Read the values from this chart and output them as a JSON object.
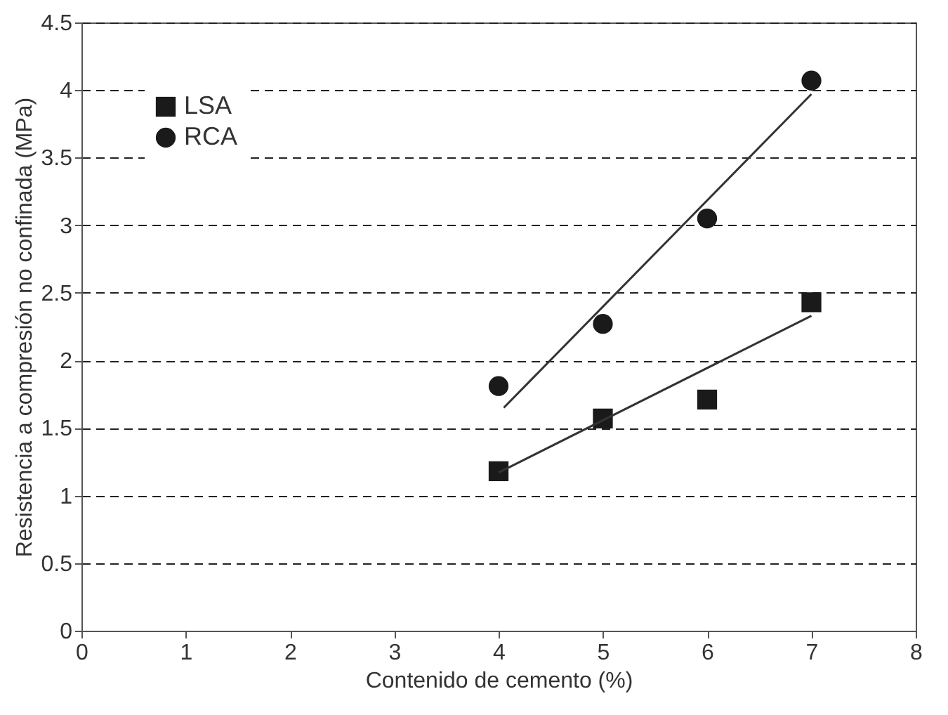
{
  "chart_data": {
    "type": "scatter",
    "xlabel": "Contenido de cemento (%)",
    "ylabel": "Resistencia a compresión no confinada (MPa)",
    "x": [
      4,
      5,
      6,
      7
    ],
    "series": [
      {
        "name": "LSA",
        "color": "#1a1a1a",
        "marker": "square",
        "values": [
          1.18,
          1.57,
          1.71,
          2.43
        ]
      },
      {
        "name": "RCA",
        "color": "#1a1a1a",
        "marker": "circle",
        "values": [
          1.81,
          2.27,
          3.05,
          4.07
        ]
      },
      {
        "type": "line",
        "color": "#333333",
        "x": [
          4,
          7
        ],
        "values": [
          1.17,
          2.33
        ]
      },
      {
        "type": "line",
        "color": "#333333",
        "x": [
          4.05,
          7
        ],
        "values": [
          1.65,
          3.97
        ]
      }
    ],
    "xlim": [
      0,
      8
    ],
    "xticks": [
      0,
      1,
      2,
      3,
      4,
      5,
      6,
      7,
      8
    ],
    "ylim": [
      0,
      4.5
    ],
    "yticks": [
      0,
      0.5,
      1,
      1.5,
      2,
      2.5,
      3,
      3.5,
      4,
      4.5
    ],
    "grid": "y",
    "line_style": "solid",
    "legend": "top left"
  }
}
